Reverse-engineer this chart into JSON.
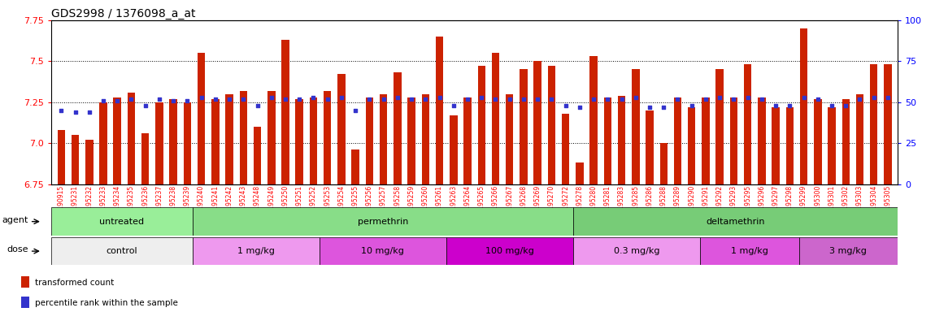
{
  "title": "GDS2998 / 1376098_a_at",
  "samples": [
    "GSM190915",
    "GSM195231",
    "GSM195232",
    "GSM195233",
    "GSM195234",
    "GSM195235",
    "GSM195236",
    "GSM195237",
    "GSM195238",
    "GSM195239",
    "GSM195240",
    "GSM195241",
    "GSM195242",
    "GSM195243",
    "GSM195248",
    "GSM195249",
    "GSM195250",
    "GSM195251",
    "GSM195252",
    "GSM195253",
    "GSM195254",
    "GSM195255",
    "GSM195256",
    "GSM195257",
    "GSM195258",
    "GSM195259",
    "GSM195260",
    "GSM195261",
    "GSM195263",
    "GSM195264",
    "GSM195265",
    "GSM195266",
    "GSM195267",
    "GSM195268",
    "GSM195269",
    "GSM195270",
    "GSM195272",
    "GSM195278",
    "GSM195280",
    "GSM195281",
    "GSM195283",
    "GSM195285",
    "GSM195286",
    "GSM195288",
    "GSM195289",
    "GSM195290",
    "GSM195291",
    "GSM195292",
    "GSM195293",
    "GSM195295",
    "GSM195296",
    "GSM195297",
    "GSM195298",
    "GSM195299",
    "GSM195300",
    "GSM195301",
    "GSM195302",
    "GSM195303",
    "GSM195304",
    "GSM195305"
  ],
  "bar_values": [
    7.08,
    7.05,
    7.02,
    7.25,
    7.28,
    7.31,
    7.06,
    7.25,
    7.27,
    7.25,
    7.55,
    7.27,
    7.3,
    7.32,
    7.1,
    7.32,
    7.63,
    7.27,
    7.28,
    7.32,
    7.42,
    6.96,
    7.28,
    7.3,
    7.43,
    7.28,
    7.3,
    7.65,
    7.17,
    7.28,
    7.47,
    7.55,
    7.3,
    7.45,
    7.5,
    7.47,
    7.18,
    6.88,
    7.53,
    7.28,
    7.29,
    7.45,
    7.2,
    7.0,
    7.28,
    7.22,
    7.28,
    7.45,
    7.28,
    7.48,
    7.28,
    7.22,
    7.22,
    7.7,
    7.27,
    7.22,
    7.27,
    7.3,
    7.48,
    7.48
  ],
  "dot_values": [
    7.2,
    7.19,
    7.19,
    7.26,
    7.26,
    7.27,
    7.23,
    7.27,
    7.26,
    7.26,
    7.28,
    7.27,
    7.27,
    7.27,
    7.23,
    7.28,
    7.27,
    7.27,
    7.28,
    7.27,
    7.28,
    7.2,
    7.27,
    7.27,
    7.28,
    7.27,
    7.27,
    7.28,
    7.23,
    7.27,
    7.28,
    7.27,
    7.27,
    7.27,
    7.27,
    7.27,
    7.23,
    7.22,
    7.27,
    7.27,
    7.27,
    7.28,
    7.22,
    7.22,
    7.27,
    7.23,
    7.27,
    7.28,
    7.27,
    7.28,
    7.27,
    7.23,
    7.23,
    7.28,
    7.27,
    7.23,
    7.23,
    7.27,
    7.28,
    7.28
  ],
  "ylim": [
    6.75,
    7.75
  ],
  "yticks_left": [
    6.75,
    7.0,
    7.25,
    7.5,
    7.75
  ],
  "yticks_right": [
    0,
    25,
    50,
    75,
    100
  ],
  "bar_color": "#CC2200",
  "dot_color": "#3333CC",
  "background_color": "#FFFFFF",
  "agent_groups": [
    {
      "label": "untreated",
      "start": 0,
      "end": 10,
      "color": "#99EE99"
    },
    {
      "label": "permethrin",
      "start": 10,
      "end": 37,
      "color": "#88DD88"
    },
    {
      "label": "deltamethrin",
      "start": 37,
      "end": 60,
      "color": "#77CC77"
    }
  ],
  "dose_groups": [
    {
      "label": "control",
      "start": 0,
      "end": 10,
      "color": "#EEEEEE"
    },
    {
      "label": "1 mg/kg",
      "start": 10,
      "end": 19,
      "color": "#EE99EE"
    },
    {
      "label": "10 mg/kg",
      "start": 19,
      "end": 28,
      "color": "#DD55DD"
    },
    {
      "label": "100 mg/kg",
      "start": 28,
      "end": 37,
      "color": "#CC00CC"
    },
    {
      "label": "0.3 mg/kg",
      "start": 37,
      "end": 46,
      "color": "#EE99EE"
    },
    {
      "label": "1 mg/kg",
      "start": 46,
      "end": 53,
      "color": "#DD55DD"
    },
    {
      "label": "3 mg/kg",
      "start": 53,
      "end": 60,
      "color": "#CC66CC"
    }
  ],
  "legend_items": [
    {
      "label": "transformed count",
      "color": "#CC2200"
    },
    {
      "label": "percentile rank within the sample",
      "color": "#3333CC"
    }
  ]
}
